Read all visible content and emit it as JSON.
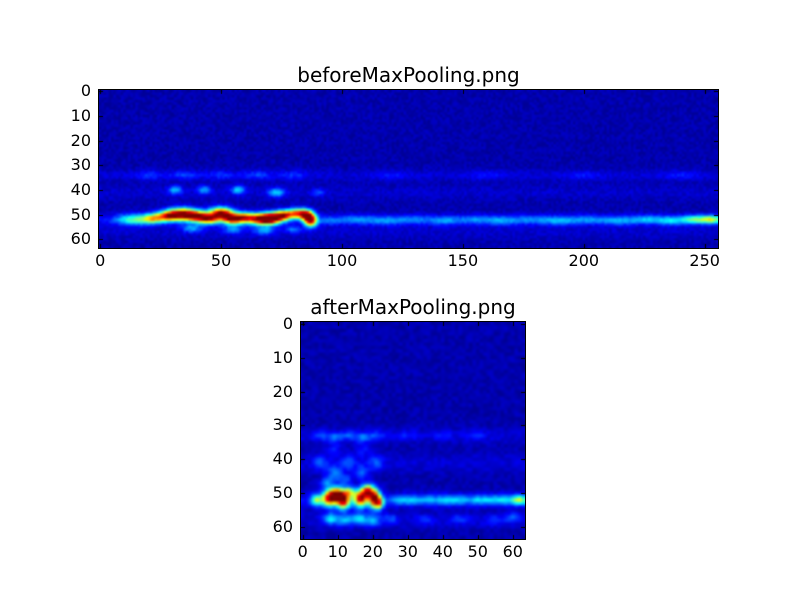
{
  "figure": {
    "background": "#ffffff",
    "border_color": "#000000",
    "text_color": "#000000"
  },
  "colors": {
    "colormap_min": "#000080",
    "colormap_mid": "#00ffff",
    "colormap_hot": "#ffff00",
    "colormap_max": "#800000"
  },
  "chart_data": [
    {
      "type": "heatmap",
      "title": "beforeMaxPooling.png",
      "colormap": "jet",
      "grid": {
        "rows": 64,
        "cols": 256
      },
      "xlim": [
        0,
        255
      ],
      "ylim": [
        63,
        0
      ],
      "x_ticks": [
        0,
        50,
        100,
        150,
        200,
        250
      ],
      "y_ticks": [
        0,
        10,
        20,
        30,
        40,
        50,
        60
      ],
      "background_level": 0.02,
      "noise_level": 0.05,
      "seed": 42,
      "annotation": "feature map with bright wavy activation band near row 50 spanning columns 8-90, faint activation row continuing to column 255, brighter streak near right edge",
      "row_bands": [
        [
          34,
          1.5,
          0.04
        ],
        [
          41,
          2,
          0.03
        ],
        [
          52,
          1.5,
          0.07
        ],
        [
          57,
          2,
          0.03
        ]
      ],
      "blobs": [
        [
          14,
          52,
          5,
          1.6,
          0.35
        ],
        [
          22,
          51.5,
          3,
          1.4,
          0.5
        ],
        [
          28,
          50.5,
          3,
          1.5,
          0.6
        ],
        [
          34,
          49.8,
          4,
          1.7,
          0.9
        ],
        [
          40,
          50.6,
          3,
          1.5,
          0.7
        ],
        [
          45,
          51.8,
          3,
          1.4,
          0.65
        ],
        [
          50,
          49.4,
          3.5,
          1.6,
          0.9
        ],
        [
          55,
          51.8,
          3,
          1.5,
          0.85
        ],
        [
          60,
          51,
          2.5,
          1.4,
          0.5
        ],
        [
          66,
          51.8,
          3.5,
          1.6,
          0.8
        ],
        [
          71,
          51.5,
          3,
          1.6,
          0.9
        ],
        [
          76,
          50.2,
          2.5,
          1.4,
          0.7
        ],
        [
          81,
          49.4,
          2.5,
          1.4,
          0.6
        ],
        [
          85,
          50,
          2,
          1.5,
          0.75
        ],
        [
          87,
          52.3,
          1.8,
          1.8,
          0.85
        ],
        [
          95,
          52.5,
          4,
          1.2,
          0.12
        ],
        [
          106,
          52,
          5,
          1.3,
          0.15
        ],
        [
          118,
          52.5,
          5,
          1.3,
          0.17
        ],
        [
          130,
          52,
          5,
          1.3,
          0.14
        ],
        [
          142,
          52.5,
          4,
          1.2,
          0.18
        ],
        [
          154,
          52,
          5,
          1.3,
          0.15
        ],
        [
          166,
          52.5,
          5,
          1.3,
          0.18
        ],
        [
          178,
          52,
          5,
          1.3,
          0.14
        ],
        [
          190,
          52.5,
          5,
          1.3,
          0.2
        ],
        [
          202,
          52,
          5,
          1.3,
          0.15
        ],
        [
          214,
          52.5,
          5,
          1.3,
          0.18
        ],
        [
          226,
          52,
          5,
          1.3,
          0.2
        ],
        [
          236,
          52.5,
          4,
          1.3,
          0.22
        ],
        [
          246,
          52,
          4,
          1.2,
          0.38
        ],
        [
          253,
          52,
          3,
          1.2,
          0.42
        ],
        [
          31,
          40,
          2,
          1.2,
          0.25
        ],
        [
          43,
          40,
          2,
          1.2,
          0.22
        ],
        [
          57,
          40,
          2,
          1.2,
          0.27
        ],
        [
          73,
          41,
          2.5,
          1.2,
          0.27
        ],
        [
          90,
          41,
          2,
          1,
          0.13
        ],
        [
          38,
          55.5,
          3,
          1.2,
          0.22
        ],
        [
          55,
          56,
          3,
          1.2,
          0.18
        ],
        [
          68,
          56.5,
          3,
          1.2,
          0.22
        ],
        [
          80,
          56,
          2,
          1,
          0.18
        ],
        [
          20,
          34,
          4,
          1.2,
          0.09
        ],
        [
          35,
          34,
          4,
          1.2,
          0.11
        ],
        [
          50,
          34,
          4,
          1.2,
          0.09
        ],
        [
          65,
          34,
          4,
          1.2,
          0.11
        ],
        [
          80,
          34,
          4,
          1.2,
          0.09
        ],
        [
          120,
          34,
          5,
          1.2,
          0.06
        ],
        [
          160,
          34,
          5,
          1.2,
          0.06
        ],
        [
          200,
          34,
          5,
          1.2,
          0.06
        ],
        [
          240,
          34,
          5,
          1.2,
          0.06
        ]
      ]
    },
    {
      "type": "heatmap",
      "title": "afterMaxPooling.png",
      "colormap": "jet",
      "grid": {
        "rows": 64,
        "cols": 64
      },
      "xlim": [
        0,
        63
      ],
      "ylim": [
        63,
        0
      ],
      "x_ticks": [
        0,
        10,
        20,
        30,
        40,
        50,
        60
      ],
      "y_ticks": [
        0,
        10,
        20,
        30,
        40,
        50,
        60
      ],
      "background_level": 0.02,
      "noise_level": 0.05,
      "seed": 7,
      "annotation": "pooled feature map with bright activation cluster near row 50 spanning columns 4-22 (dark red core near column 12), faint activation row continuing to column 63",
      "row_bands": [
        [
          33,
          1.5,
          0.04
        ],
        [
          41,
          2,
          0.04
        ],
        [
          52,
          1.5,
          0.07
        ],
        [
          58,
          1.5,
          0.04
        ]
      ],
      "blobs": [
        [
          4,
          52,
          1.2,
          1.2,
          0.45
        ],
        [
          7.5,
          51.5,
          1.3,
          1.6,
          0.8
        ],
        [
          9.5,
          50.3,
          1.2,
          1.3,
          0.75
        ],
        [
          11.5,
          51.8,
          1.4,
          1.8,
          1.0
        ],
        [
          13.5,
          49.5,
          1,
          1,
          0.4
        ],
        [
          16.5,
          51.5,
          1.3,
          1.8,
          0.85
        ],
        [
          18.5,
          49.3,
          1.1,
          1.3,
          0.7
        ],
        [
          20.5,
          51.5,
          1.2,
          1.9,
          0.9
        ],
        [
          22,
          53,
          0.9,
          1.2,
          0.45
        ],
        [
          27,
          52,
          2,
          1,
          0.16
        ],
        [
          31,
          52,
          2,
          1,
          0.2
        ],
        [
          36,
          52,
          2,
          1,
          0.18
        ],
        [
          41,
          52,
          2,
          1,
          0.22
        ],
        [
          45,
          52,
          2,
          1,
          0.18
        ],
        [
          50,
          52,
          2,
          1,
          0.2
        ],
        [
          54,
          52,
          2,
          1,
          0.18
        ],
        [
          58,
          52,
          2,
          1,
          0.22
        ],
        [
          62,
          52,
          1.5,
          1,
          0.45
        ],
        [
          5,
          33,
          1.5,
          1,
          0.13
        ],
        [
          9,
          33.5,
          1.5,
          1,
          0.16
        ],
        [
          13,
          33,
          1.5,
          1,
          0.13
        ],
        [
          17,
          33.5,
          1.5,
          1,
          0.16
        ],
        [
          21,
          33,
          1.5,
          1,
          0.13
        ],
        [
          30,
          33,
          2,
          1,
          0.07
        ],
        [
          40,
          33,
          2,
          1,
          0.07
        ],
        [
          50,
          33,
          2,
          1,
          0.07
        ],
        [
          5,
          41,
          1.5,
          1.5,
          0.13
        ],
        [
          9,
          44,
          1.5,
          1.5,
          0.18
        ],
        [
          13,
          41,
          1.5,
          1.5,
          0.13
        ],
        [
          17,
          44,
          1.5,
          1.5,
          0.16
        ],
        [
          21,
          41,
          1.5,
          1.5,
          0.13
        ],
        [
          9,
          37,
          1.5,
          1.5,
          0.1
        ],
        [
          17,
          37,
          1.5,
          1.5,
          0.1
        ],
        [
          7,
          47,
          1.5,
          1.2,
          0.2
        ],
        [
          12,
          46,
          1.5,
          1.2,
          0.15
        ],
        [
          8,
          57.5,
          1.5,
          1.2,
          0.28
        ],
        [
          12,
          58,
          1.5,
          1.2,
          0.22
        ],
        [
          16,
          57.5,
          1.5,
          1.2,
          0.28
        ],
        [
          20,
          58,
          1.5,
          1.2,
          0.22
        ],
        [
          25,
          57.5,
          1.5,
          1,
          0.13
        ],
        [
          35,
          58,
          2,
          1,
          0.09
        ],
        [
          45,
          57.5,
          2,
          1,
          0.1
        ],
        [
          55,
          58,
          2,
          1,
          0.1
        ],
        [
          60,
          57,
          1.5,
          1,
          0.13
        ]
      ]
    }
  ]
}
